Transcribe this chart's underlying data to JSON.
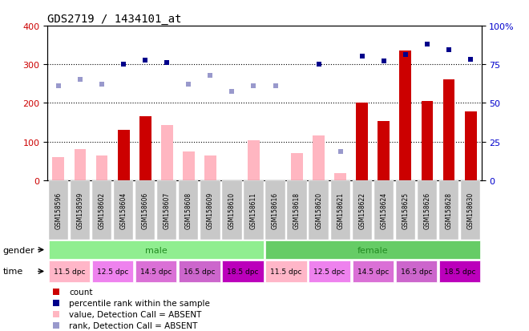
{
  "title": "GDS2719 / 1434101_at",
  "samples": [
    "GSM158596",
    "GSM158599",
    "GSM158602",
    "GSM158604",
    "GSM158606",
    "GSM158607",
    "GSM158608",
    "GSM158609",
    "GSM158610",
    "GSM158611",
    "GSM158616",
    "GSM158618",
    "GSM158620",
    "GSM158621",
    "GSM158622",
    "GSM158624",
    "GSM158625",
    "GSM158626",
    "GSM158628",
    "GSM158630"
  ],
  "bar_values": [
    null,
    null,
    null,
    130,
    165,
    null,
    null,
    null,
    null,
    null,
    null,
    null,
    null,
    null,
    200,
    152,
    335,
    205,
    260,
    178
  ],
  "bar_absent_values": [
    60,
    80,
    63,
    null,
    null,
    143,
    75,
    63,
    null,
    103,
    null,
    70,
    115,
    18,
    null,
    null,
    null,
    null,
    null,
    null
  ],
  "rank_present": [
    null,
    null,
    null,
    300,
    310,
    305,
    null,
    null,
    null,
    null,
    null,
    null,
    300,
    null,
    322,
    308,
    325,
    353,
    338,
    313
  ],
  "rank_absent": [
    245,
    262,
    248,
    null,
    null,
    null,
    248,
    272,
    230,
    245,
    245,
    null,
    null,
    75,
    null,
    null,
    null,
    null,
    null,
    null
  ],
  "gender_groups": [
    {
      "label": "male",
      "start": 0,
      "end": 10,
      "color": "#90EE90",
      "text_color": "#228B22"
    },
    {
      "label": "female",
      "start": 10,
      "end": 20,
      "color": "#66CC66",
      "text_color": "#228B22"
    }
  ],
  "time_colors": [
    "#FFB6C8",
    "#EE82EE",
    "#DA70D6",
    "#CC66CC",
    "#BB00BB",
    "#FFB6C8",
    "#EE82EE",
    "#DA70D6",
    "#CC66CC",
    "#BB00BB"
  ],
  "time_labels": [
    "11.5 dpc",
    "12.5 dpc",
    "14.5 dpc",
    "16.5 dpc",
    "18.5 dpc",
    "11.5 dpc",
    "12.5 dpc",
    "14.5 dpc",
    "16.5 dpc",
    "18.5 dpc"
  ],
  "ylim_left": [
    0,
    400
  ],
  "ylim_right": [
    0,
    100
  ],
  "yticks_left": [
    0,
    100,
    200,
    300,
    400
  ],
  "yticks_right": [
    0,
    25,
    50,
    75,
    100
  ],
  "bar_color": "#CC0000",
  "bar_absent_color": "#FFB6C1",
  "rank_present_color": "#00008B",
  "rank_absent_color": "#9999CC",
  "tick_label_color_left": "#CC0000",
  "tick_label_color_right": "#0000CC",
  "legend_items": [
    {
      "color": "#CC0000",
      "label": "count"
    },
    {
      "color": "#00008B",
      "label": "percentile rank within the sample"
    },
    {
      "color": "#FFB6C1",
      "label": "value, Detection Call = ABSENT"
    },
    {
      "color": "#9999CC",
      "label": "rank, Detection Call = ABSENT"
    }
  ]
}
